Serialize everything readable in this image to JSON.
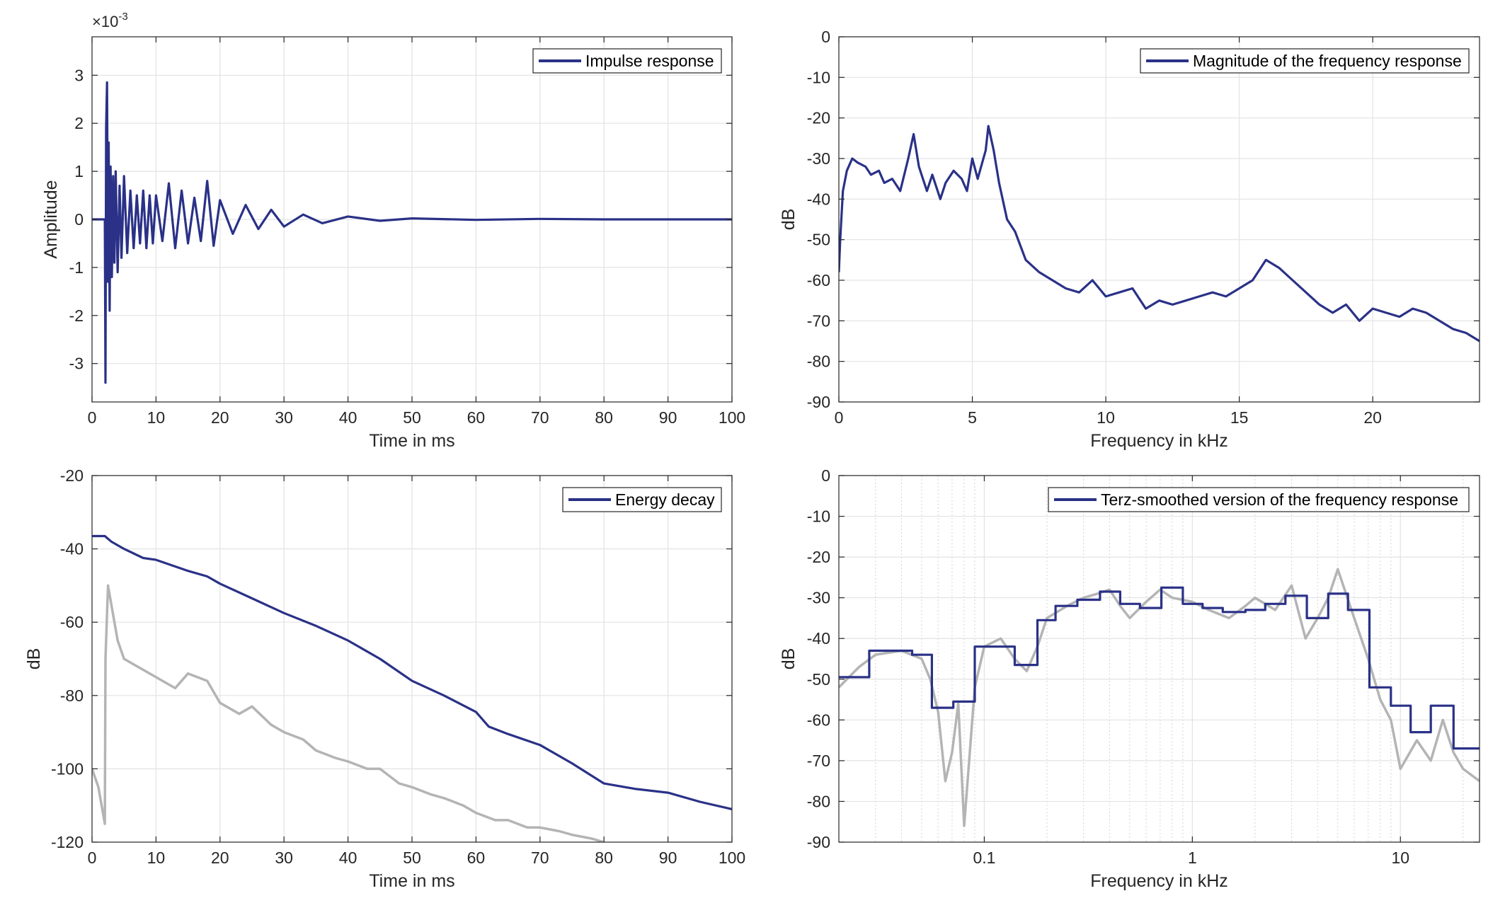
{
  "colors": {
    "primary": "#2a3187",
    "secondary": "#b4b4b4",
    "grid": "#e3e3e3",
    "axis": "#262626"
  },
  "chart_data": [
    {
      "id": "impulse",
      "type": "line",
      "xlabel": "Time in ms",
      "ylabel": "Amplitude",
      "xlim": [
        0,
        100
      ],
      "ylim": [
        -3.8,
        3.8
      ],
      "xticks": [
        0,
        10,
        20,
        30,
        40,
        50,
        60,
        70,
        80,
        90,
        100
      ],
      "yticks": [
        -3,
        -2,
        -1,
        0,
        1,
        2,
        3
      ],
      "y_exponent_base": "×10",
      "y_exponent_power": "-3",
      "grid": true,
      "legend_position": "top-right",
      "series": [
        {
          "name": "Impulse response",
          "color": "primary",
          "x": [
            0,
            2,
            2.1,
            2.2,
            2.35,
            2.5,
            2.6,
            2.75,
            2.9,
            3.1,
            3.3,
            3.5,
            3.7,
            4,
            4.3,
            4.6,
            5,
            5.5,
            6,
            6.5,
            7,
            7.5,
            8,
            8.5,
            9,
            9.5,
            10,
            11,
            12,
            13,
            14,
            15,
            16,
            17,
            18,
            19,
            20,
            22,
            24,
            26,
            28,
            30,
            33,
            36,
            40,
            45,
            50,
            60,
            70,
            80,
            90,
            100
          ],
          "y": [
            0,
            0,
            -3.4,
            1.9,
            2.85,
            -1.3,
            1.6,
            -1.9,
            1.1,
            -1.2,
            0.9,
            -0.9,
            1.0,
            -1.1,
            0.7,
            -0.8,
            0.9,
            -0.7,
            0.6,
            -0.6,
            0.5,
            -0.5,
            0.6,
            -0.6,
            0.5,
            -0.5,
            0.5,
            -0.45,
            0.75,
            -0.6,
            0.6,
            -0.5,
            0.45,
            -0.45,
            0.8,
            -0.55,
            0.4,
            -0.3,
            0.3,
            -0.2,
            0.2,
            -0.15,
            0.1,
            -0.08,
            0.06,
            -0.03,
            0.02,
            -0.01,
            0.01,
            0,
            0,
            0
          ]
        }
      ]
    },
    {
      "id": "magnitude",
      "type": "line",
      "xlabel": "Frequency in kHz",
      "ylabel": "dB",
      "xlim": [
        0,
        24
      ],
      "ylim": [
        -90,
        0
      ],
      "xticks": [
        0,
        5,
        10,
        15,
        20
      ],
      "yticks": [
        0,
        -10,
        -20,
        -30,
        -40,
        -50,
        -60,
        -70,
        -80,
        -90
      ],
      "grid": true,
      "legend_position": "top-right",
      "series": [
        {
          "name": "Magnitude of the frequency response",
          "color": "primary",
          "x": [
            0,
            0.05,
            0.15,
            0.3,
            0.5,
            0.7,
            1.0,
            1.2,
            1.5,
            1.7,
            2.0,
            2.3,
            2.6,
            2.8,
            3.0,
            3.3,
            3.5,
            3.8,
            4.0,
            4.3,
            4.6,
            4.8,
            5.0,
            5.2,
            5.5,
            5.6,
            5.8,
            6.0,
            6.3,
            6.6,
            7.0,
            7.5,
            8.0,
            8.5,
            9.0,
            9.5,
            10.0,
            10.5,
            11.0,
            11.5,
            12.0,
            12.5,
            13.0,
            13.5,
            14.0,
            14.5,
            15.0,
            15.5,
            16.0,
            16.5,
            17.0,
            17.5,
            18.0,
            18.5,
            19.0,
            19.5,
            20.0,
            20.5,
            21.0,
            21.5,
            22.0,
            22.5,
            23.0,
            23.5,
            24.0
          ],
          "y": [
            -58,
            -50,
            -38,
            -33,
            -30,
            -31,
            -32,
            -34,
            -33,
            -36,
            -35,
            -38,
            -30,
            -24,
            -32,
            -38,
            -34,
            -40,
            -36,
            -33,
            -35,
            -38,
            -30,
            -35,
            -28,
            -22,
            -28,
            -36,
            -45,
            -48,
            -55,
            -58,
            -60,
            -62,
            -63,
            -60,
            -64,
            -63,
            -62,
            -67,
            -65,
            -66,
            -65,
            -64,
            -63,
            -64,
            -62,
            -60,
            -55,
            -57,
            -60,
            -63,
            -66,
            -68,
            -66,
            -70,
            -67,
            -68,
            -69,
            -67,
            -68,
            -70,
            -72,
            -73,
            -75
          ]
        }
      ]
    },
    {
      "id": "energy",
      "type": "line",
      "xlabel": "Time in ms",
      "ylabel": "dB",
      "xlim": [
        0,
        100
      ],
      "ylim": [
        -120,
        -20
      ],
      "xticks": [
        0,
        10,
        20,
        30,
        40,
        50,
        60,
        70,
        80,
        90,
        100
      ],
      "yticks": [
        -20,
        -40,
        -60,
        -80,
        -100,
        -120
      ],
      "grid": true,
      "legend_position": "top-right",
      "series": [
        {
          "name": "Energy decay",
          "color": "primary",
          "x": [
            0,
            2,
            3,
            5,
            8,
            10,
            15,
            18,
            20,
            25,
            30,
            35,
            40,
            45,
            50,
            55,
            60,
            62,
            65,
            70,
            75,
            80,
            85,
            90,
            95,
            100
          ],
          "y": [
            -36.5,
            -36.5,
            -38,
            -40,
            -42.5,
            -43,
            -46,
            -47.5,
            -49.5,
            -53.5,
            -57.5,
            -61,
            -65,
            -70,
            -76,
            -80,
            -84.5,
            -88.5,
            -90.5,
            -93.5,
            -98.5,
            -104,
            -105.5,
            -106.5,
            -109,
            -111
          ]
        },
        {
          "color": "secondary",
          "x": [
            0,
            1,
            2,
            2.1,
            2.5,
            3,
            4,
            5,
            7,
            10,
            13,
            15,
            18,
            20,
            23,
            25,
            28,
            30,
            33,
            35,
            38,
            40,
            43,
            45,
            48,
            50,
            53,
            55,
            58,
            60,
            63,
            65,
            68,
            70,
            73,
            75,
            78,
            80
          ],
          "y": [
            -100,
            -105,
            -115,
            -70,
            -50,
            -55,
            -65,
            -70,
            -72,
            -75,
            -78,
            -74,
            -76,
            -82,
            -85,
            -83,
            -88,
            -90,
            -92,
            -95,
            -97,
            -98,
            -100,
            -100,
            -104,
            -105,
            -107,
            -108,
            -110,
            -112,
            -114,
            -114,
            -116,
            -116,
            -117,
            -118,
            -119,
            -120
          ]
        }
      ]
    },
    {
      "id": "terz",
      "type": "line",
      "xlabel": "Frequency in kHz",
      "ylabel": "dB",
      "x_scale": "log",
      "xlim": [
        0.02,
        24
      ],
      "ylim": [
        -90,
        0
      ],
      "xticks": [
        0.1,
        1,
        10
      ],
      "xtick_labels": [
        "0.1",
        "1",
        "10"
      ],
      "yticks": [
        0,
        -10,
        -20,
        -30,
        -40,
        -50,
        -60,
        -70,
        -80,
        -90
      ],
      "grid": true,
      "legend_position": "top-right",
      "series": [
        {
          "name": "Terz-smoothed version of the frequency response",
          "color": "primary",
          "step": true,
          "x": [
            0.02,
            0.028,
            0.045,
            0.056,
            0.071,
            0.09,
            0.14,
            0.18,
            0.22,
            0.28,
            0.36,
            0.45,
            0.56,
            0.71,
            0.9,
            1.12,
            1.4,
            1.8,
            2.24,
            2.8,
            3.55,
            4.5,
            5.6,
            7.1,
            9.0,
            11.2,
            14.0,
            18.0,
            24.0
          ],
          "y": [
            -49.5,
            -43,
            -44,
            -57,
            -55.5,
            -42,
            -46.5,
            -35.5,
            -32,
            -30.5,
            -28.5,
            -31.5,
            -32.5,
            -27.5,
            -31.5,
            -32.5,
            -33.5,
            -33,
            -31.5,
            -29.5,
            -35,
            -29,
            -33,
            -52,
            -56.5,
            -63,
            -56.5,
            -67,
            -67
          ]
        },
        {
          "color": "secondary",
          "x": [
            0.02,
            0.025,
            0.03,
            0.04,
            0.05,
            0.055,
            0.06,
            0.065,
            0.07,
            0.075,
            0.08,
            0.09,
            0.1,
            0.12,
            0.14,
            0.16,
            0.18,
            0.2,
            0.25,
            0.3,
            0.35,
            0.4,
            0.45,
            0.5,
            0.6,
            0.7,
            0.8,
            1.0,
            1.2,
            1.5,
            1.8,
            2.0,
            2.5,
            3.0,
            3.5,
            4.0,
            4.5,
            5.0,
            6.0,
            7.0,
            8.0,
            9.0,
            10.0,
            12.0,
            14.0,
            16.0,
            18.0,
            20.0,
            24.0
          ],
          "y": [
            -52,
            -47,
            -44,
            -43,
            -45,
            -50,
            -58,
            -75,
            -68,
            -56,
            -86,
            -52,
            -42,
            -40,
            -45,
            -48,
            -42,
            -35,
            -32,
            -30,
            -29,
            -28,
            -32,
            -35,
            -31,
            -28,
            -30,
            -31,
            -33,
            -35,
            -32,
            -30,
            -33,
            -27,
            -40,
            -35,
            -30,
            -23,
            -35,
            -45,
            -55,
            -60,
            -72,
            -65,
            -70,
            -60,
            -68,
            -72,
            -75
          ]
        }
      ]
    }
  ]
}
